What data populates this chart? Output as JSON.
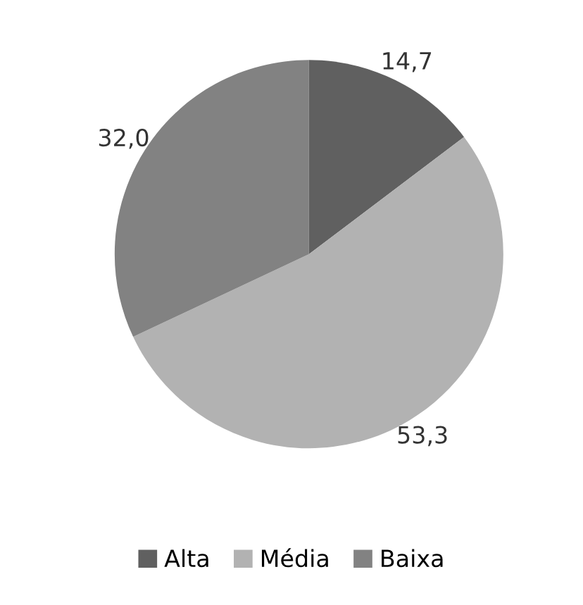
{
  "chart_data": {
    "type": "pie",
    "categories": [
      "Alta",
      "Média",
      "Baixa"
    ],
    "values": [
      14.7,
      53.3,
      32.0
    ],
    "colors": [
      "#606060",
      "#b2b2b2",
      "#828282"
    ],
    "value_labels": [
      "14,7",
      "53,3",
      "32,0"
    ],
    "legend": "bottom"
  }
}
